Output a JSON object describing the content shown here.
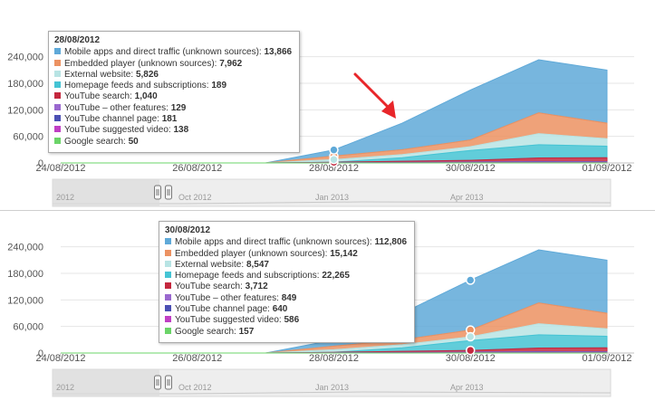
{
  "chart_data": [
    {
      "type": "area",
      "x": [
        "24/08/2012",
        "25/08/2012",
        "26/08/2012",
        "27/08/2012",
        "28/08/2012",
        "29/08/2012",
        "30/08/2012",
        "31/08/2012",
        "01/09/2012"
      ],
      "x_tick_labels": [
        "24/08/2012",
        "26/08/2012",
        "28/08/2012",
        "30/08/2012",
        "01/09/2012"
      ],
      "y_tick_labels": [
        "0",
        "60,000",
        "120,000",
        "180,000",
        "240,000"
      ],
      "ylim": [
        0,
        270000
      ],
      "stacked": true,
      "legend": "tooltip",
      "series": [
        {
          "name": "Google search",
          "color": "#6bd468",
          "values": [
            0,
            0,
            0,
            0,
            50,
            100,
            157,
            200,
            200
          ]
        },
        {
          "name": "YouTube suggested video",
          "color": "#c03fc4",
          "values": [
            0,
            0,
            0,
            0,
            138,
            350,
            586,
            900,
            800
          ]
        },
        {
          "name": "YouTube channel page",
          "color": "#4b4fb3",
          "values": [
            0,
            0,
            0,
            0,
            181,
            400,
            640,
            900,
            800
          ]
        },
        {
          "name": "YouTube – other features",
          "color": "#9a68cf",
          "values": [
            0,
            0,
            0,
            0,
            129,
            500,
            849,
            1200,
            1000
          ]
        },
        {
          "name": "YouTube search",
          "color": "#c4283e",
          "values": [
            0,
            0,
            0,
            0,
            1040,
            2500,
            3712,
            8000,
            9000
          ]
        },
        {
          "name": "Homepage feeds and subscriptions",
          "color": "#45c4d4",
          "values": [
            0,
            0,
            0,
            0,
            189,
            8000,
            22265,
            30000,
            26000
          ]
        },
        {
          "name": "External website",
          "color": "#b8e4e4",
          "values": [
            0,
            0,
            0,
            0,
            5826,
            7000,
            8547,
            25000,
            17000
          ]
        },
        {
          "name": "Embedded player (unknown sources)",
          "color": "#ec9262",
          "values": [
            0,
            0,
            0,
            0,
            7962,
            11000,
            15142,
            47000,
            35000
          ]
        },
        {
          "name": "Mobile apps and direct traffic (unknown sources)",
          "color": "#5fa9d8",
          "values": [
            0,
            0,
            0,
            0,
            13866,
            60000,
            112806,
            120000,
            120000
          ]
        }
      ],
      "hover": {
        "date": "28/08/2012",
        "x_index": 4
      },
      "navigator_labels": [
        "2012",
        "Oct 2012",
        "Jan 2013",
        "Apr 2013"
      ],
      "tooltip": {
        "date": "28/08/2012",
        "rows": [
          {
            "label": "Mobile apps and direct traffic (unknown sources):",
            "value": "13,866",
            "color": "#5fa9d8"
          },
          {
            "label": "Embedded player (unknown sources):",
            "value": "7,962",
            "color": "#ec9262"
          },
          {
            "label": "External website:",
            "value": "5,826",
            "color": "#b8e4e4"
          },
          {
            "label": "Homepage feeds and subscriptions:",
            "value": "189",
            "color": "#45c4d4"
          },
          {
            "label": "YouTube search:",
            "value": "1,040",
            "color": "#c4283e"
          },
          {
            "label": "YouTube – other features:",
            "value": "129",
            "color": "#9a68cf"
          },
          {
            "label": "YouTube channel page:",
            "value": "181",
            "color": "#4b4fb3"
          },
          {
            "label": "YouTube suggested video:",
            "value": "138",
            "color": "#c03fc4"
          },
          {
            "label": "Google search:",
            "value": "50",
            "color": "#6bd468"
          }
        ]
      }
    },
    {
      "type": "area",
      "x": [
        "24/08/2012",
        "25/08/2012",
        "26/08/2012",
        "27/08/2012",
        "28/08/2012",
        "29/08/2012",
        "30/08/2012",
        "31/08/2012",
        "01/09/2012"
      ],
      "x_tick_labels": [
        "24/08/2012",
        "26/08/2012",
        "28/08/2012",
        "30/08/2012",
        "01/09/2012"
      ],
      "y_tick_labels": [
        "0",
        "60,000",
        "120,000",
        "180,000",
        "240,000"
      ],
      "ylim": [
        0,
        270000
      ],
      "stacked": true,
      "legend": "tooltip",
      "series": [
        {
          "name": "Google search",
          "color": "#6bd468",
          "values": [
            0,
            0,
            0,
            0,
            50,
            100,
            157,
            200,
            200
          ]
        },
        {
          "name": "YouTube suggested video",
          "color": "#c03fc4",
          "values": [
            0,
            0,
            0,
            0,
            138,
            350,
            586,
            900,
            800
          ]
        },
        {
          "name": "YouTube channel page",
          "color": "#4b4fb3",
          "values": [
            0,
            0,
            0,
            0,
            181,
            400,
            640,
            900,
            800
          ]
        },
        {
          "name": "YouTube – other features",
          "color": "#9a68cf",
          "values": [
            0,
            0,
            0,
            0,
            129,
            500,
            849,
            1200,
            1000
          ]
        },
        {
          "name": "YouTube search",
          "color": "#c4283e",
          "values": [
            0,
            0,
            0,
            0,
            1040,
            2500,
            3712,
            8000,
            9000
          ]
        },
        {
          "name": "Homepage feeds and subscriptions",
          "color": "#45c4d4",
          "values": [
            0,
            0,
            0,
            0,
            189,
            8000,
            22265,
            30000,
            26000
          ]
        },
        {
          "name": "External website",
          "color": "#b8e4e4",
          "values": [
            0,
            0,
            0,
            0,
            5826,
            7000,
            8547,
            25000,
            17000
          ]
        },
        {
          "name": "Embedded player (unknown sources)",
          "color": "#ec9262",
          "values": [
            0,
            0,
            0,
            0,
            7962,
            11000,
            15142,
            47000,
            35000
          ]
        },
        {
          "name": "Mobile apps and direct traffic (unknown sources)",
          "color": "#5fa9d8",
          "values": [
            0,
            0,
            0,
            0,
            13866,
            60000,
            112806,
            120000,
            120000
          ]
        }
      ],
      "hover": {
        "date": "30/08/2012",
        "x_index": 6
      },
      "navigator_labels": [
        "2012",
        "Oct 2012",
        "Jan 2013",
        "Apr 2013"
      ],
      "tooltip": {
        "date": "30/08/2012",
        "rows": [
          {
            "label": "Mobile apps and direct traffic (unknown sources):",
            "value": "112,806",
            "color": "#5fa9d8"
          },
          {
            "label": "Embedded player (unknown sources):",
            "value": "15,142",
            "color": "#ec9262"
          },
          {
            "label": "External website:",
            "value": "8,547",
            "color": "#b8e4e4"
          },
          {
            "label": "Homepage feeds and subscriptions:",
            "value": "22,265",
            "color": "#45c4d4"
          },
          {
            "label": "YouTube search:",
            "value": "3,712",
            "color": "#c4283e"
          },
          {
            "label": "YouTube – other features:",
            "value": "849",
            "color": "#9a68cf"
          },
          {
            "label": "YouTube channel page:",
            "value": "640",
            "color": "#4b4fb3"
          },
          {
            "label": "YouTube suggested video:",
            "value": "586",
            "color": "#c03fc4"
          },
          {
            "label": "Google search:",
            "value": "157",
            "color": "#6bd468"
          }
        ]
      }
    }
  ],
  "annotation": {
    "arrow_color": "#e8262a"
  }
}
